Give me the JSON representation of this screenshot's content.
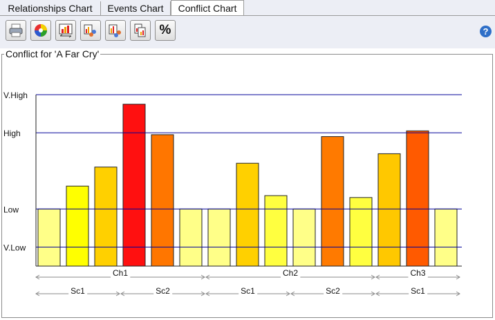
{
  "tabs": [
    {
      "label": "Relationships Chart",
      "active": false
    },
    {
      "label": "Events Chart",
      "active": false
    },
    {
      "label": "Conflict Chart",
      "active": true
    }
  ],
  "toolbar": {
    "buttons": [
      {
        "name": "print-icon"
      },
      {
        "name": "color-wheel-icon"
      },
      {
        "name": "bar-chart-swap-icon"
      },
      {
        "name": "chart-people-icon"
      },
      {
        "name": "chart-people-alt-icon"
      },
      {
        "name": "copy-chart-icon"
      },
      {
        "name": "percent-icon",
        "glyph": "%"
      }
    ],
    "help_glyph": "?"
  },
  "panel": {
    "title": "Conflict for 'A Far Cry'"
  },
  "chart_data": {
    "type": "bar",
    "y_levels": [
      {
        "label": "V.High",
        "value": 4
      },
      {
        "label": "High",
        "value": 3
      },
      {
        "label": "Low",
        "value": 1
      },
      {
        "label": "V.Low",
        "value": 0
      }
    ],
    "ylim": [
      -0.5,
      4.45
    ],
    "values": [
      1.0,
      1.6,
      2.1,
      3.75,
      2.95,
      1.0,
      1.0,
      2.2,
      1.35,
      1.0,
      2.9,
      1.3,
      2.45,
      3.05,
      1.0
    ],
    "colors": [
      "#ffff88",
      "#ffff00",
      "#ffd000",
      "#ff1010",
      "#ff7600",
      "#ffff88",
      "#ffff88",
      "#ffd000",
      "#ffff40",
      "#ffff88",
      "#ff7a00",
      "#ffff40",
      "#ffc800",
      "#ff5a00",
      "#ffff88"
    ],
    "chapters": [
      {
        "label": "Ch1",
        "start": 0,
        "end": 6
      },
      {
        "label": "Ch2",
        "start": 6,
        "end": 12
      },
      {
        "label": "Ch3",
        "start": 12,
        "end": 15
      }
    ],
    "scenes": [
      {
        "label": "Sc1",
        "start": 0,
        "end": 3
      },
      {
        "label": "Sc2",
        "start": 3,
        "end": 6
      },
      {
        "label": "Sc1",
        "start": 6,
        "end": 9
      },
      {
        "label": "Sc2",
        "start": 9,
        "end": 12
      },
      {
        "label": "Sc1",
        "start": 12,
        "end": 15
      }
    ],
    "gridlines": true,
    "line_color": "#000099"
  }
}
